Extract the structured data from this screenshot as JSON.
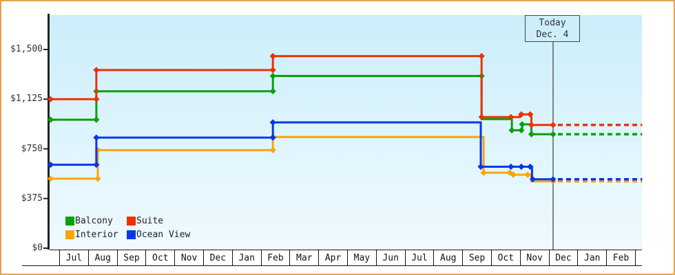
{
  "frame": {
    "border_color": "#E8A14C",
    "background": "#FFFFFF"
  },
  "chart_data": {
    "type": "line",
    "line_style": "step",
    "y_axis": {
      "min": 0,
      "max": 1500,
      "ticks": [
        {
          "label": "$1,500",
          "value": 1500
        },
        {
          "label": "$1,125",
          "value": 1125
        },
        {
          "label": "$750",
          "value": 750
        },
        {
          "label": "$375",
          "value": 375
        },
        {
          "label": "$0",
          "value": 0
        }
      ]
    },
    "x_axis": {
      "unit": "months_from_first_cell_start",
      "labels": [
        "Jul",
        "Aug",
        "Sep",
        "Oct",
        "Nov",
        "Dec",
        "Jan",
        "Feb",
        "Mar",
        "Apr",
        "May",
        "Jun",
        "Jul",
        "Aug",
        "Sep",
        "Oct",
        "Nov",
        "Dec",
        "Jan",
        "Feb"
      ]
    },
    "today": {
      "line1": "Today",
      "line2": "Dec. 4",
      "t": 17.153
    },
    "projection_end_t": 20.25,
    "legend": [
      {
        "label": "Balcony",
        "color": "#0AA00A"
      },
      {
        "label": "Suite",
        "color": "#EE3008"
      },
      {
        "label": "Interior",
        "color": "#FAA505"
      },
      {
        "label": "Ocean View",
        "color": "#0536EC"
      }
    ],
    "series": [
      {
        "name": "Interior",
        "color": "#FAA505",
        "final": 505,
        "points": [
          [
            -0.34,
            525
          ],
          [
            1.34,
            525
          ],
          [
            1.34,
            740
          ],
          [
            7.42,
            740
          ],
          [
            7.42,
            840
          ],
          [
            14.74,
            840
          ],
          [
            14.74,
            570
          ],
          [
            15.72,
            570
          ],
          [
            15.72,
            555
          ],
          [
            16.39,
            555
          ],
          [
            16.39,
            505
          ],
          [
            17.153,
            505
          ]
        ],
        "dots": [
          [
            -0.3,
            525
          ],
          [
            1.34,
            525
          ],
          [
            1.34,
            740
          ],
          [
            7.42,
            740
          ],
          [
            7.42,
            840
          ],
          [
            14.74,
            570
          ],
          [
            15.65,
            570
          ],
          [
            15.77,
            555
          ],
          [
            16.27,
            555
          ],
          [
            17.153,
            505
          ]
        ]
      },
      {
        "name": "Ocean View",
        "color": "#0536EC",
        "final": 520,
        "points": [
          [
            -0.34,
            630
          ],
          [
            1.29,
            630
          ],
          [
            1.29,
            835
          ],
          [
            7.42,
            835
          ],
          [
            7.42,
            950
          ],
          [
            14.64,
            950
          ],
          [
            14.64,
            615
          ],
          [
            16.42,
            615
          ],
          [
            16.42,
            520
          ],
          [
            17.153,
            520
          ]
        ],
        "dots": [
          [
            -0.3,
            630
          ],
          [
            1.29,
            630
          ],
          [
            1.29,
            835
          ],
          [
            7.42,
            835
          ],
          [
            7.42,
            950
          ],
          [
            14.64,
            615
          ],
          [
            15.69,
            615
          ],
          [
            16.05,
            615
          ],
          [
            16.36,
            615
          ],
          [
            16.45,
            520
          ],
          [
            17.153,
            520
          ]
        ]
      },
      {
        "name": "Balcony",
        "color": "#0AA00A",
        "final": 860,
        "points": [
          [
            -0.34,
            970
          ],
          [
            1.29,
            970
          ],
          [
            1.29,
            1185
          ],
          [
            7.42,
            1185
          ],
          [
            7.42,
            1300
          ],
          [
            14.67,
            1300
          ],
          [
            14.67,
            975
          ],
          [
            15.72,
            975
          ],
          [
            15.72,
            890
          ],
          [
            16.08,
            890
          ],
          [
            16.08,
            935
          ],
          [
            16.4,
            935
          ],
          [
            16.4,
            860
          ],
          [
            17.153,
            860
          ]
        ],
        "dots": [
          [
            -0.3,
            970
          ],
          [
            1.29,
            970
          ],
          [
            1.29,
            1185
          ],
          [
            7.42,
            1185
          ],
          [
            7.42,
            1300
          ],
          [
            14.67,
            1300
          ],
          [
            15.72,
            890
          ],
          [
            16.05,
            890
          ],
          [
            16.08,
            935
          ],
          [
            16.4,
            860
          ],
          [
            17.153,
            860
          ]
        ]
      },
      {
        "name": "Suite",
        "color": "#EE3008",
        "final": 930,
        "points": [
          [
            -0.34,
            1125
          ],
          [
            1.29,
            1125
          ],
          [
            1.29,
            1345
          ],
          [
            7.42,
            1345
          ],
          [
            7.42,
            1450
          ],
          [
            14.67,
            1450
          ],
          [
            14.67,
            990
          ],
          [
            16.0,
            990
          ],
          [
            16.0,
            1010
          ],
          [
            16.4,
            1010
          ],
          [
            16.4,
            930
          ],
          [
            17.153,
            930
          ]
        ],
        "dots": [
          [
            -0.3,
            1125
          ],
          [
            1.29,
            1125
          ],
          [
            1.29,
            1345
          ],
          [
            7.42,
            1345
          ],
          [
            7.42,
            1450
          ],
          [
            14.67,
            1450
          ],
          [
            14.67,
            990
          ],
          [
            15.69,
            990
          ],
          [
            16.05,
            1010
          ],
          [
            16.36,
            1010
          ],
          [
            16.4,
            930
          ],
          [
            17.153,
            930
          ]
        ]
      }
    ]
  }
}
